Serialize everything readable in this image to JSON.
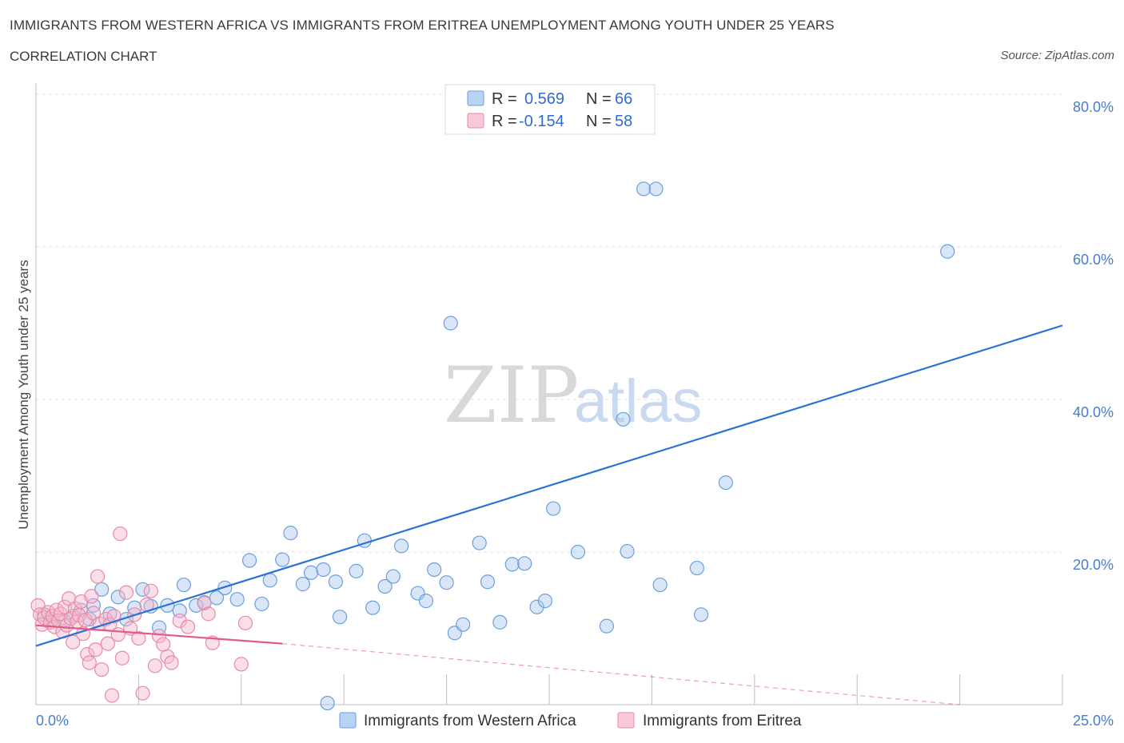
{
  "header": {
    "title": "IMMIGRANTS FROM WESTERN AFRICA VS IMMIGRANTS FROM ERITREA UNEMPLOYMENT AMONG YOUTH UNDER 25 YEARS",
    "subtitle": "CORRELATION CHART",
    "source": "Source: ZipAtlas.com"
  },
  "watermark": {
    "zip": "ZIP",
    "atlas": "atlas"
  },
  "colors": {
    "blue_fill": "#a9c8f0",
    "blue_stroke": "#6d9fdc",
    "blue_line": "#2b72d6",
    "pink_fill": "#f6b9cc",
    "pink_stroke": "#e88aa8",
    "pink_line": "#e05b8a",
    "grid": "#e2e2e2",
    "tick_text": "#4a7ccc"
  },
  "chart_data": {
    "type": "scatter",
    "ylabel": "Unemployment Among Youth under 25 years",
    "xlim": [
      0,
      25
    ],
    "ylim": [
      0,
      80
    ],
    "x_tick_labels": [
      "0.0%",
      "25.0%"
    ],
    "y_ticks": [
      20,
      40,
      60,
      80
    ],
    "y_tick_labels": [
      "20.0%",
      "40.0%",
      "60.0%",
      "80.0%"
    ],
    "grid": true,
    "legend_position": "top-center",
    "stats": [
      {
        "r_label": "R = ",
        "r_value": "0.569",
        "n_label": "N = ",
        "n_value": "66"
      },
      {
        "r_label": "R = ",
        "r_value": "-0.154",
        "n_label": "N = ",
        "n_value": "58"
      }
    ],
    "series": [
      {
        "name": "Immigrants from Western Africa",
        "color": "#a9c8f0",
        "trend": {
          "x": [
            0,
            25
          ],
          "y": [
            7.7,
            49.7
          ],
          "style": "solid"
        },
        "points": [
          [
            0.2,
            11.8
          ],
          [
            0.4,
            11.2
          ],
          [
            0.7,
            10.9
          ],
          [
            0.9,
            11.6
          ],
          [
            1.1,
            12.4
          ],
          [
            1.3,
            11.2
          ],
          [
            1.4,
            13.0
          ],
          [
            1.6,
            15.1
          ],
          [
            1.8,
            11.9
          ],
          [
            2.0,
            14.1
          ],
          [
            2.2,
            11.2
          ],
          [
            2.4,
            12.7
          ],
          [
            2.6,
            15.1
          ],
          [
            2.8,
            12.9
          ],
          [
            3.0,
            10.1
          ],
          [
            3.2,
            13.0
          ],
          [
            3.5,
            12.3
          ],
          [
            3.6,
            15.7
          ],
          [
            3.9,
            13.0
          ],
          [
            4.1,
            13.4
          ],
          [
            4.4,
            14.0
          ],
          [
            4.6,
            15.3
          ],
          [
            4.9,
            13.8
          ],
          [
            5.2,
            18.9
          ],
          [
            5.5,
            13.2
          ],
          [
            5.7,
            16.3
          ],
          [
            6.0,
            19.0
          ],
          [
            6.2,
            22.5
          ],
          [
            6.5,
            15.8
          ],
          [
            6.7,
            17.3
          ],
          [
            7.0,
            17.7
          ],
          [
            7.3,
            16.1
          ],
          [
            7.4,
            11.5
          ],
          [
            7.8,
            17.5
          ],
          [
            8.0,
            21.5
          ],
          [
            8.2,
            12.7
          ],
          [
            8.5,
            15.5
          ],
          [
            8.7,
            16.8
          ],
          [
            8.9,
            20.8
          ],
          [
            9.3,
            14.6
          ],
          [
            9.5,
            13.6
          ],
          [
            9.7,
            17.7
          ],
          [
            10.0,
            16.0
          ],
          [
            10.2,
            9.4
          ],
          [
            10.4,
            10.5
          ],
          [
            10.8,
            21.2
          ],
          [
            11.0,
            16.1
          ],
          [
            11.3,
            10.8
          ],
          [
            11.6,
            18.4
          ],
          [
            11.9,
            18.5
          ],
          [
            12.2,
            12.8
          ],
          [
            12.4,
            13.6
          ],
          [
            12.6,
            25.7
          ],
          [
            13.2,
            20.0
          ],
          [
            13.9,
            10.3
          ],
          [
            14.3,
            37.4
          ],
          [
            14.4,
            20.1
          ],
          [
            14.8,
            67.6
          ],
          [
            15.1,
            67.6
          ],
          [
            15.2,
            15.7
          ],
          [
            16.1,
            17.9
          ],
          [
            16.2,
            11.8
          ],
          [
            16.8,
            29.1
          ],
          [
            22.2,
            59.4
          ],
          [
            7.1,
            0.2
          ],
          [
            10.1,
            50.0
          ]
        ]
      },
      {
        "name": "Immigrants from Eritrea",
        "color": "#f6b9cc",
        "trend": {
          "x": [
            0,
            6
          ],
          "y": [
            10.4,
            8.0
          ],
          "style": "solid",
          "ext_x": [
            6,
            22.5
          ],
          "ext_y": [
            8.0,
            0.0
          ]
        },
        "points": [
          [
            0.05,
            13.0
          ],
          [
            0.1,
            11.8
          ],
          [
            0.15,
            10.5
          ],
          [
            0.2,
            11.4
          ],
          [
            0.3,
            12.1
          ],
          [
            0.35,
            10.8
          ],
          [
            0.4,
            11.6
          ],
          [
            0.45,
            10.2
          ],
          [
            0.5,
            12.4
          ],
          [
            0.55,
            11.0
          ],
          [
            0.6,
            11.9
          ],
          [
            0.65,
            9.6
          ],
          [
            0.7,
            12.8
          ],
          [
            0.75,
            10.4
          ],
          [
            0.8,
            13.9
          ],
          [
            0.85,
            11.3
          ],
          [
            0.9,
            8.2
          ],
          [
            0.95,
            12.6
          ],
          [
            1.0,
            10.9
          ],
          [
            1.05,
            11.7
          ],
          [
            1.1,
            13.5
          ],
          [
            1.15,
            9.3
          ],
          [
            1.2,
            11.1
          ],
          [
            1.25,
            6.6
          ],
          [
            1.3,
            5.5
          ],
          [
            1.35,
            14.2
          ],
          [
            1.4,
            12.0
          ],
          [
            1.45,
            7.2
          ],
          [
            1.5,
            16.8
          ],
          [
            1.55,
            10.6
          ],
          [
            1.6,
            4.6
          ],
          [
            1.7,
            11.2
          ],
          [
            1.75,
            8.0
          ],
          [
            1.8,
            10.5
          ],
          [
            1.85,
            1.2
          ],
          [
            1.9,
            11.6
          ],
          [
            2.0,
            9.2
          ],
          [
            2.05,
            22.4
          ],
          [
            2.1,
            6.1
          ],
          [
            2.2,
            14.7
          ],
          [
            2.3,
            10.0
          ],
          [
            2.4,
            11.8
          ],
          [
            2.5,
            8.7
          ],
          [
            2.6,
            1.5
          ],
          [
            2.7,
            13.1
          ],
          [
            2.8,
            14.9
          ],
          [
            2.9,
            5.1
          ],
          [
            3.0,
            9.0
          ],
          [
            3.1,
            7.9
          ],
          [
            3.2,
            6.3
          ],
          [
            3.3,
            5.5
          ],
          [
            3.5,
            11.0
          ],
          [
            3.7,
            10.2
          ],
          [
            4.1,
            13.3
          ],
          [
            4.2,
            11.9
          ],
          [
            4.3,
            8.1
          ],
          [
            5.1,
            10.7
          ],
          [
            5.0,
            5.3
          ]
        ]
      }
    ]
  }
}
